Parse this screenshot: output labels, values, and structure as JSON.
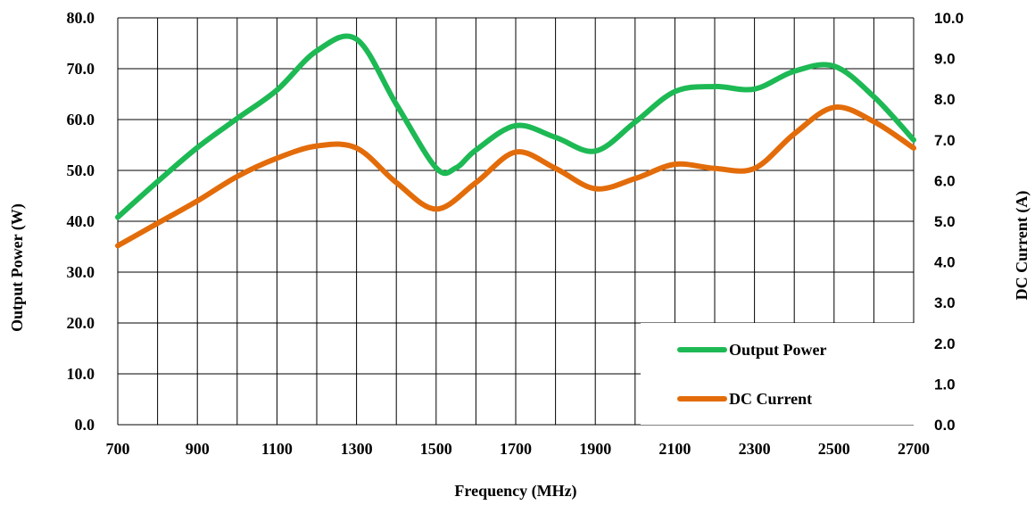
{
  "chart_data": {
    "type": "line",
    "xlabel": "Frequency (MHz)",
    "ylabel_left": "Output Power (W)",
    "ylabel_right": "DC Current (A)",
    "x_ticks": [
      "700",
      "900",
      "1100",
      "1300",
      "1500",
      "1700",
      "1900",
      "2100",
      "2300",
      "2500",
      "2700"
    ],
    "y_left_ticks": [
      "0.0",
      "10.0",
      "20.0",
      "30.0",
      "40.0",
      "50.0",
      "60.0",
      "70.0",
      "80.0"
    ],
    "y_right_ticks": [
      "0.0",
      "1.0",
      "2.0",
      "3.0",
      "4.0",
      "5.0",
      "6.0",
      "7.0",
      "8.0",
      "9.0",
      "10.0"
    ],
    "xlim": [
      700,
      2700
    ],
    "ylim_left": [
      0,
      80
    ],
    "ylim_right": [
      0,
      10
    ],
    "grid": true,
    "legend_position": "bottom-right",
    "series": [
      {
        "name": "Output Power",
        "axis": "left",
        "color": "#1db954",
        "x": [
          700,
          800,
          900,
          1000,
          1100,
          1200,
          1300,
          1400,
          1500,
          1550,
          1600,
          1700,
          1800,
          1900,
          2000,
          2100,
          2200,
          2300,
          2400,
          2500,
          2600,
          2700
        ],
        "y": [
          40.8,
          47.8,
          54.5,
          60.2,
          65.8,
          73.5,
          75.8,
          63.0,
          50.5,
          50.5,
          54.0,
          58.8,
          56.5,
          53.8,
          59.5,
          65.5,
          66.5,
          66.0,
          69.5,
          70.5,
          64.5,
          56.0
        ]
      },
      {
        "name": "DC Current",
        "axis": "right",
        "color": "#e36c0a",
        "x": [
          700,
          800,
          900,
          1000,
          1100,
          1200,
          1300,
          1400,
          1500,
          1600,
          1700,
          1800,
          1900,
          2000,
          2100,
          2200,
          2300,
          2400,
          2500,
          2600,
          2700
        ],
        "y": [
          4.4,
          4.95,
          5.5,
          6.1,
          6.55,
          6.85,
          6.8,
          5.95,
          5.3,
          5.95,
          6.7,
          6.3,
          5.8,
          6.05,
          6.4,
          6.3,
          6.3,
          7.15,
          7.8,
          7.45,
          6.8
        ]
      }
    ]
  }
}
